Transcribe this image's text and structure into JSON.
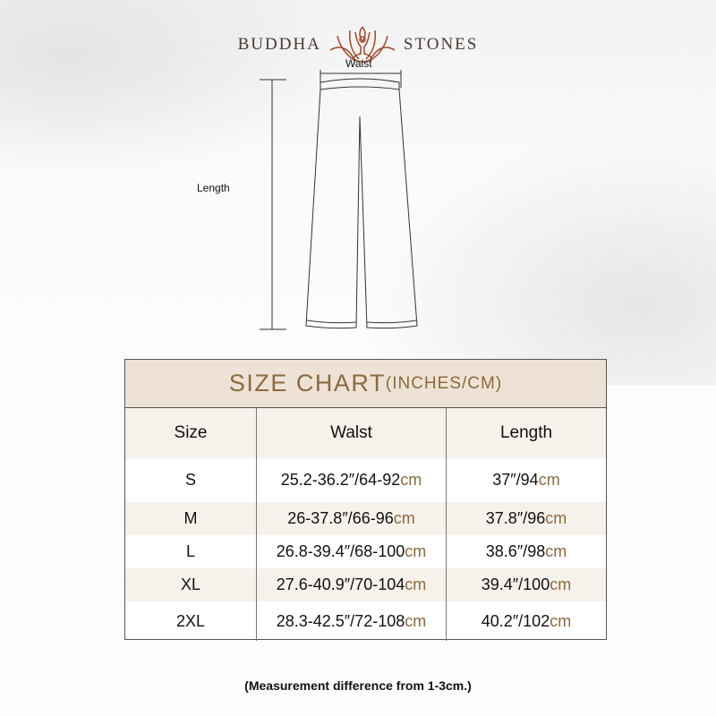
{
  "brand": {
    "left": "BUDDHA",
    "right": "STONES",
    "logo_icon": "lotus-meditation-icon",
    "color": "#a04a2a"
  },
  "diagram": {
    "waist_label": "Walst",
    "length_label": "Length"
  },
  "size_chart": {
    "title": "SIZE CHART",
    "title_units": "(INCHES/CM)",
    "headers": [
      "Size",
      "Walst",
      "Length"
    ],
    "rows": [
      {
        "size": "S",
        "waist": "25.2-36.2″/64-92",
        "waist_unit": "cm",
        "length": "37″/94",
        "length_unit": "cm"
      },
      {
        "size": "M",
        "waist": "26-37.8″/66-96",
        "waist_unit": "cm",
        "length": "37.8″/96",
        "length_unit": "cm"
      },
      {
        "size": "L",
        "waist": "26.8-39.4″/68-100",
        "waist_unit": "cm",
        "length": "38.6″/98",
        "length_unit": "cm"
      },
      {
        "size": "XL",
        "waist": "27.6-40.9″/70-104",
        "waist_unit": "cm",
        "length": "39.4″/100",
        "length_unit": "cm"
      },
      {
        "size": "2XL",
        "waist": "28.3-42.5″/72-108",
        "waist_unit": "cm",
        "length": "40.2″/102",
        "length_unit": "cm"
      }
    ],
    "accent": "#8a6a3e"
  },
  "note": "(Measurement difference from 1-3cm.)"
}
